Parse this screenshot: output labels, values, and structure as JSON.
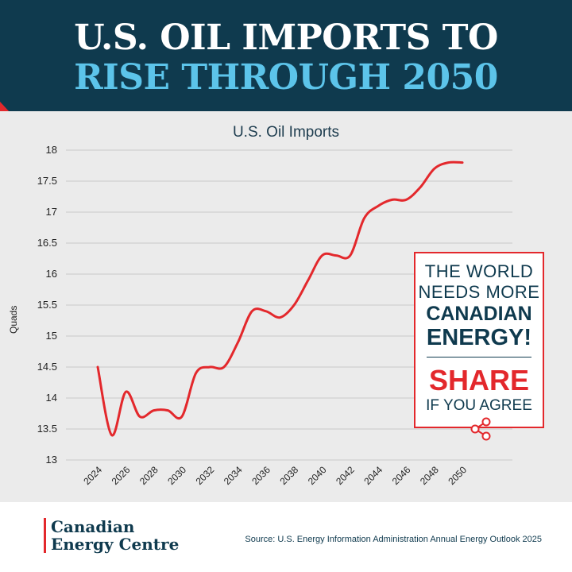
{
  "header": {
    "line1": "U.S. OIL IMPORTS TO",
    "line2": "RISE THROUGH 2050"
  },
  "chart_data": {
    "type": "line",
    "title": "U.S. Oil Imports",
    "xlabel": "",
    "ylabel": "Quads",
    "ylim": [
      13,
      18
    ],
    "yticks": [
      "13",
      "13.5",
      "14",
      "14.5",
      "15",
      "15.5",
      "16",
      "16.5",
      "17",
      "17.5",
      "18"
    ],
    "xticks": [
      "2024",
      "2026",
      "2028",
      "2030",
      "2032",
      "2034",
      "2036",
      "2038",
      "2040",
      "2042",
      "2044",
      "2046",
      "2048",
      "2050"
    ],
    "grid": "horizontal",
    "line_color": "#e3282c",
    "x": [
      2024,
      2025,
      2026,
      2027,
      2028,
      2029,
      2030,
      2031,
      2032,
      2033,
      2034,
      2035,
      2036,
      2037,
      2038,
      2039,
      2040,
      2041,
      2042,
      2043,
      2044,
      2045,
      2046,
      2047,
      2048,
      2049,
      2050
    ],
    "values": [
      14.5,
      13.4,
      14.1,
      13.7,
      13.8,
      13.8,
      13.7,
      14.4,
      14.5,
      14.5,
      14.9,
      15.4,
      15.4,
      15.3,
      15.5,
      15.9,
      16.3,
      16.3,
      16.3,
      16.9,
      17.1,
      17.2,
      17.2,
      17.4,
      17.7,
      17.8,
      17.8
    ]
  },
  "callout": {
    "line1": "THE WORLD",
    "line2": "NEEDS MORE",
    "line3": "CANADIAN",
    "line4": "ENERGY!",
    "line5": "SHARE",
    "line6": "IF YOU AGREE"
  },
  "footer": {
    "logo_line1": "Canadian",
    "logo_line2": "Energy Centre",
    "source": "Source: U.S. Energy Information Administration Annual Energy Outlook 2025"
  },
  "colors": {
    "navy": "#0f3a4e",
    "accent_blue": "#5cc4ea",
    "red": "#e3282c",
    "panel": "#ebebeb"
  }
}
